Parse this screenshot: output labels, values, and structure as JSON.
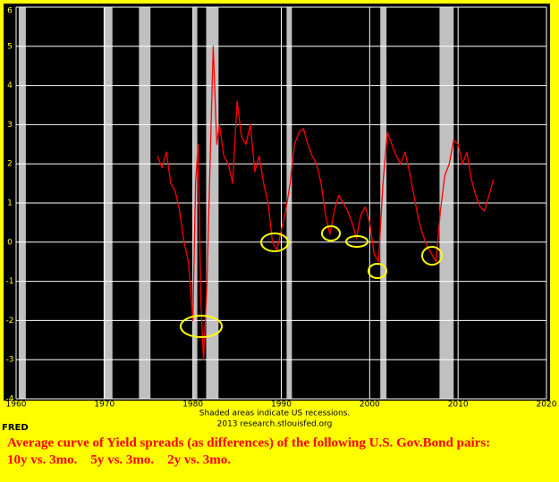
{
  "chart_data": {
    "type": "line",
    "x": [
      1976.0,
      1976.5,
      1977.0,
      1977.5,
      1978.0,
      1978.5,
      1979.0,
      1979.5,
      1980.0,
      1980.3,
      1980.6,
      1980.9,
      1981.2,
      1981.6,
      1982.0,
      1982.3,
      1982.7,
      1983.0,
      1983.5,
      1984.0,
      1984.5,
      1985.0,
      1985.5,
      1986.0,
      1986.5,
      1987.0,
      1987.5,
      1988.0,
      1988.5,
      1989.0,
      1989.5,
      1990.0,
      1990.5,
      1991.0,
      1991.5,
      1992.0,
      1992.5,
      1993.0,
      1993.5,
      1994.0,
      1994.5,
      1995.0,
      1995.5,
      1996.0,
      1996.5,
      1997.0,
      1997.5,
      1998.0,
      1998.5,
      1999.0,
      1999.5,
      2000.0,
      2000.5,
      2001.0,
      2001.5,
      2002.0,
      2002.5,
      2003.0,
      2003.5,
      2004.0,
      2004.5,
      2005.0,
      2005.5,
      2006.0,
      2006.5,
      2007.0,
      2007.5,
      2008.0,
      2008.5,
      2009.0,
      2009.5,
      2010.0,
      2010.5,
      2011.0,
      2011.5,
      2012.0,
      2012.5,
      2013.0,
      2013.5,
      2014.0
    ],
    "values": [
      2.2,
      1.9,
      2.3,
      1.5,
      1.3,
      0.8,
      0.0,
      -0.5,
      -2.0,
      1.5,
      2.5,
      -1.5,
      -3.0,
      -1.0,
      2.5,
      5.0,
      2.5,
      3.0,
      2.2,
      2.0,
      1.5,
      3.6,
      2.7,
      2.5,
      3.0,
      1.8,
      2.2,
      1.5,
      1.0,
      0.0,
      -0.2,
      0.3,
      0.8,
      1.5,
      2.5,
      2.8,
      2.9,
      2.5,
      2.2,
      2.0,
      1.5,
      0.7,
      0.2,
      0.8,
      1.2,
      1.0,
      0.8,
      0.5,
      0.1,
      0.7,
      0.9,
      0.5,
      -0.3,
      -0.5,
      1.5,
      2.8,
      2.5,
      2.2,
      2.0,
      2.3,
      1.8,
      1.2,
      0.6,
      0.2,
      -0.1,
      -0.3,
      -0.5,
      0.8,
      1.7,
      2.0,
      2.6,
      2.5,
      2.0,
      2.3,
      1.6,
      1.2,
      0.9,
      0.8,
      1.2,
      1.6
    ],
    "color": "#ff0000",
    "recessions": [
      [
        1960.3,
        1961.1
      ],
      [
        1969.9,
        1970.9
      ],
      [
        1973.9,
        1975.2
      ],
      [
        1980.0,
        1980.5
      ],
      [
        1981.5,
        1982.9
      ],
      [
        1990.6,
        1991.2
      ],
      [
        2001.2,
        2001.9
      ],
      [
        2007.9,
        2009.5
      ]
    ],
    "recession_color": "#c0c0c0",
    "xlim": [
      1960,
      2020
    ],
    "xticks": [
      1960,
      1970,
      1980,
      1990,
      2000,
      2010,
      2020
    ],
    "ylim": [
      -4,
      6
    ],
    "yticks": [
      -4,
      -3,
      -2,
      -1,
      0,
      1,
      2,
      3,
      4,
      5,
      6
    ],
    "grid": true,
    "note": "Shaded areas indicate US recessions.",
    "source": "2013 research.stlouisfed.org",
    "brand": "FRED",
    "caption_line1": "Average curve of Yield spreads (as differences) of the following U.S. Gov.Bond pairs:",
    "caption_line2": "10y vs. 3mo.    5y vs. 3mo.    2y vs. 3mo."
  }
}
